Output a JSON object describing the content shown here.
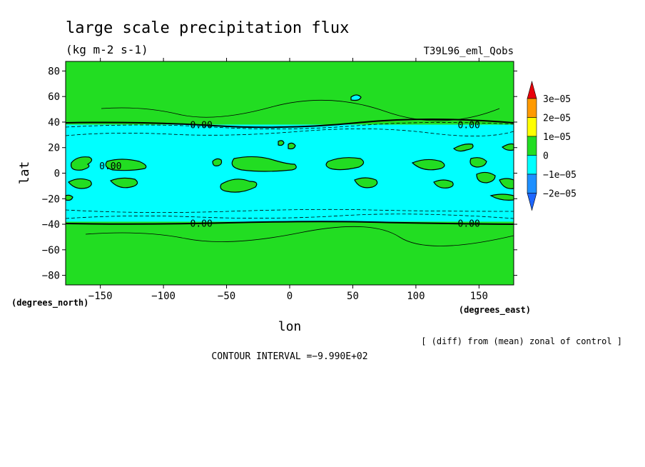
{
  "chart_data": {
    "type": "heatmap",
    "title": "large scale precipitation flux",
    "units": "(kg m-2 s-1)",
    "run_label": "T39L96_eml_Qobs",
    "xlabel": "lon",
    "ylabel": "lat",
    "x_unit_label": "(degrees_east)",
    "y_unit_label": "(degrees_north)",
    "xlim": [
      -177.5,
      177.5
    ],
    "ylim": [
      -87.5,
      87.5
    ],
    "xticks": [
      -150,
      -100,
      -50,
      0,
      50,
      100,
      150
    ],
    "yticks": [
      -80,
      -60,
      -40,
      -20,
      0,
      20,
      40,
      60,
      80
    ],
    "xtick_labels": [
      "−150",
      "−100",
      "−50",
      "0",
      "50",
      "100",
      "150"
    ],
    "ytick_labels": [
      "−80",
      "−60",
      "−40",
      "−20",
      "0",
      "20",
      "40",
      "60",
      "80"
    ],
    "colorbar": {
      "labels": [
        "3e−05",
        "2e−05",
        "1e−05",
        "0",
        "−1e−05",
        "−2e−05"
      ],
      "colors": [
        "#e8000b",
        "#ff9a00",
        "#ffff00",
        "#22dd22",
        "#00ffff",
        "#1e90ff",
        "#1e66ff"
      ]
    },
    "bands": [
      {
        "from": 38,
        "to": 87.5,
        "color": "#22dd22"
      },
      {
        "from": -38,
        "to": 38,
        "color": "#00ffff"
      },
      {
        "from": -87.5,
        "to": -38,
        "color": "#22dd22"
      }
    ],
    "contour_labels": [
      {
        "text": "0.00",
        "lon": -70,
        "lat": 38
      },
      {
        "text": "0.00",
        "lon": 142,
        "lat": 38
      },
      {
        "text": "0.00",
        "lon": -142,
        "lat": 6
      },
      {
        "text": "0.00",
        "lon": -70,
        "lat": -39
      },
      {
        "text": "0.00",
        "lon": 142,
        "lat": -39
      }
    ],
    "grid": false,
    "legend_placement": "right"
  },
  "annotations": {
    "diff_note": "[ (diff) from (mean) zonal of control ]",
    "contour_interval": "CONTOUR INTERVAL =−9.990E+02"
  }
}
